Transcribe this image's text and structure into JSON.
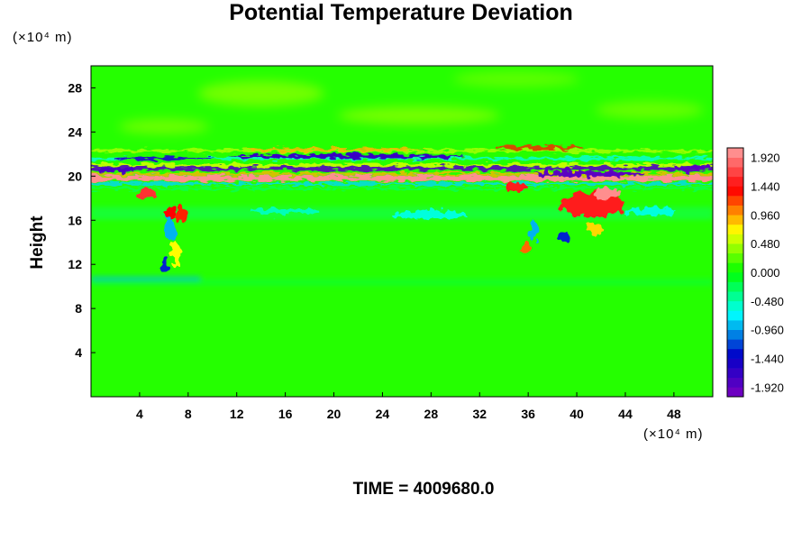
{
  "chart_data": {
    "type": "heatmap",
    "title": "Potential Temperature Deviation",
    "xunit": "(×10⁴ m)",
    "yunit": "(×10⁴ m)",
    "xlabel": "",
    "ylabel": "Height",
    "xlim": [
      0,
      51.2
    ],
    "ylim": [
      0,
      30
    ],
    "xticks": [
      "4",
      "8",
      "12",
      "16",
      "20",
      "24",
      "28",
      "32",
      "36",
      "40",
      "44",
      "48"
    ],
    "yticks": [
      "4",
      "8",
      "12",
      "16",
      "20",
      "24",
      "28"
    ],
    "colorbar": {
      "min": -2.08,
      "max": 2.08,
      "step": 0.16,
      "labels": [
        "1.920",
        "1.440",
        "0.960",
        "0.480",
        "0.000",
        "-0.480",
        "-0.960",
        "-1.440",
        "-1.920"
      ]
    },
    "background_value": 0.1,
    "colors": [
      "#7b00c0",
      "#0000c8",
      "#00ffff",
      "#00ff00",
      "#ffff00",
      "#ff0000",
      "#ffa0a0"
    ],
    "features": [
      {
        "name": "tropopause band warm",
        "x": [
          0,
          51.2
        ],
        "y": 19.8,
        "value": 2.0
      },
      {
        "name": "tropopause band cold upper",
        "x": [
          0,
          51.2
        ],
        "y": 20.6,
        "value": -1.9
      },
      {
        "name": "tropopause band cold lower",
        "x": [
          0,
          51.2
        ],
        "y": 19.2,
        "value": -0.8
      },
      {
        "name": "upper wave",
        "x": [
          10,
          32
        ],
        "y": 21.8,
        "value": -1.6
      },
      {
        "name": "warm patch",
        "x": [
          3.4,
          7.8
        ],
        "y": 18.5,
        "value": 1.5
      },
      {
        "name": "warm patch",
        "x": [
          38.2,
          44.3
        ],
        "y": 17.5,
        "value": 1.7
      },
      {
        "name": "cold patch",
        "x": [
          38.5,
          44.0
        ],
        "y": 20.2,
        "value": -1.9
      },
      {
        "name": "lower layer",
        "x": [
          0,
          51.2
        ],
        "y": 10.5,
        "value": -0.4
      }
    ],
    "time_label": "TIME = 4009680.0"
  }
}
